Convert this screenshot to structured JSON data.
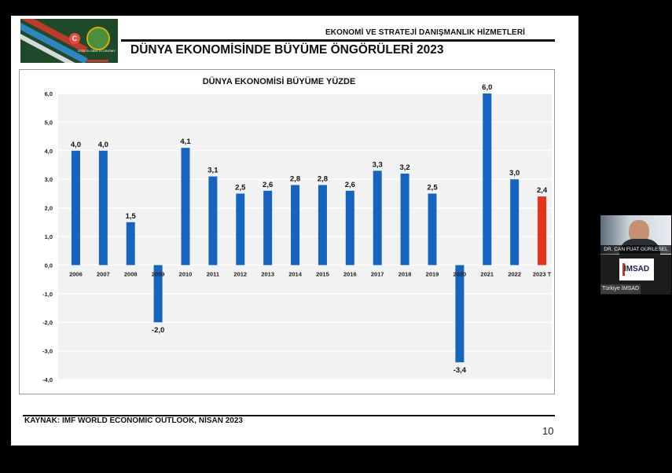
{
  "slide": {
    "header_subtitle": "EKONOMİ VE STRATEJİ DANIŞMANLIK HİZMETLERİ",
    "title": "DÜNYA EKONOMİSİNDE BÜYÜME ÖNGÖRÜLERİ 2023",
    "source": "KAYNAK: IMF WORLD ECONOMIC OUTLOOK, NİSAN 2023",
    "page_number": "10",
    "logo": {
      "badge": "C",
      "caption": "2023 GLOBAL ECONOMY"
    }
  },
  "chart_data": {
    "type": "bar",
    "title": "DÜNYA EKONOMİSİ BÜYÜME YÜZDE",
    "categories": [
      "2006",
      "2007",
      "2008",
      "2009",
      "2010",
      "2011",
      "2012",
      "2013",
      "2014",
      "2015",
      "2016",
      "2017",
      "2018",
      "2019",
      "2020",
      "2021",
      "2022",
      "2023 T"
    ],
    "values": [
      4.0,
      4.0,
      1.5,
      -2.0,
      4.1,
      3.1,
      2.5,
      2.6,
      2.8,
      2.8,
      2.6,
      3.3,
      3.2,
      2.5,
      -3.4,
      6.0,
      3.0,
      2.4
    ],
    "value_labels": [
      "4,0",
      "4,0",
      "1,5",
      "-2,0",
      "4,1",
      "3,1",
      "2,5",
      "2,6",
      "2,8",
      "2,8",
      "2,6",
      "3,3",
      "3,2",
      "2,5",
      "-3,4",
      "6,0",
      "3,0",
      "2,4"
    ],
    "ylim": [
      -4,
      6
    ],
    "yticks": [
      6,
      5,
      4,
      3,
      2,
      1,
      0,
      -1,
      -2,
      -3,
      -4
    ],
    "ytick_labels": [
      "6,0",
      "5,0",
      "4,0",
      "3,0",
      "2,0",
      "1,0",
      "0,0",
      "-1,0",
      "-2,0",
      "-3,0",
      "-4,0"
    ],
    "grid": true,
    "colors": {
      "default": "#1565c0",
      "highlight": "#e8321e",
      "plot_bg": "#f2f2f2",
      "grid": "#ffffff"
    },
    "highlight_index": 17
  },
  "video": {
    "name": "DR. CAN FUAT GÜRLESEL",
    "logo_text": "İMSAD",
    "label": "Türkiye İMSAD"
  }
}
